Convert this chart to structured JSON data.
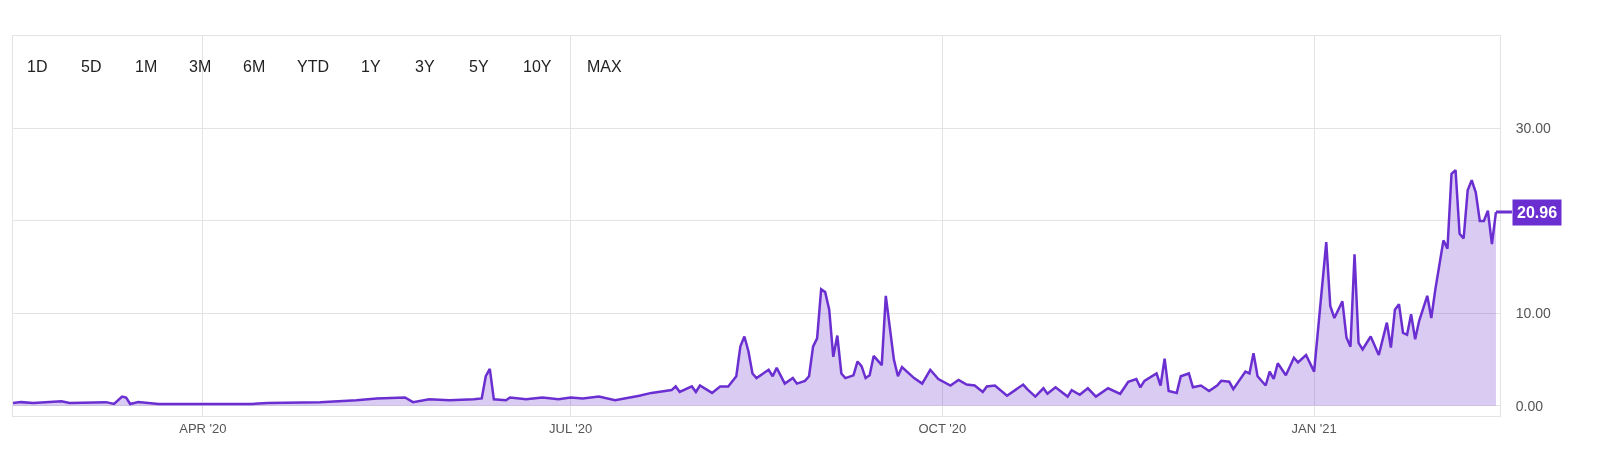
{
  "chart_data": {
    "type": "area",
    "annotations": [
      "1D",
      "5D",
      "1M",
      "3M",
      "6M",
      "YTD",
      "1Y",
      "3Y",
      "5Y",
      "10Y",
      "MAX",
      {
        "text": "20.96",
        "x": "2021-02-15",
        "y": 20.96
      }
    ],
    "x": [
      "2020-02-14",
      "2020-02-16",
      "2020-02-19",
      "2020-02-26",
      "2020-02-28",
      "2020-03-08",
      "2020-03-10",
      "2020-03-12",
      "2020-03-13",
      "2020-03-14",
      "2020-03-16",
      "2020-03-21",
      "2020-04-01",
      "2020-04-13",
      "2020-04-17",
      "2020-04-30",
      "2020-05-09",
      "2020-05-14",
      "2020-05-21",
      "2020-05-23",
      "2020-05-27",
      "2020-06-01",
      "2020-06-07",
      "2020-06-09",
      "2020-06-10",
      "2020-06-11",
      "2020-06-12",
      "2020-06-15",
      "2020-06-16",
      "2020-06-20",
      "2020-06-24",
      "2020-06-28",
      "2020-07-01",
      "2020-07-04",
      "2020-07-08",
      "2020-07-12",
      "2020-07-18",
      "2020-07-21",
      "2020-07-26",
      "2020-07-27",
      "2020-07-28",
      "2020-07-31",
      "2020-08-01",
      "2020-08-02",
      "2020-08-05",
      "2020-08-07",
      "2020-08-09",
      "2020-08-11",
      "2020-08-12",
      "2020-08-13",
      "2020-08-14",
      "2020-08-15",
      "2020-08-16",
      "2020-08-19",
      "2020-08-20",
      "2020-08-21",
      "2020-08-23",
      "2020-08-25",
      "2020-08-26",
      "2020-08-28",
      "2020-08-29",
      "2020-08-30",
      "2020-08-31",
      "2020-09-01",
      "2020-09-02",
      "2020-09-03",
      "2020-09-04",
      "2020-09-05",
      "2020-09-06",
      "2020-09-07",
      "2020-09-09",
      "2020-09-10",
      "2020-09-11",
      "2020-09-12",
      "2020-09-13",
      "2020-09-14",
      "2020-09-16",
      "2020-09-17",
      "2020-09-19",
      "2020-09-20",
      "2020-09-21",
      "2020-09-24",
      "2020-09-26",
      "2020-09-28",
      "2020-09-30",
      "2020-10-03",
      "2020-10-05",
      "2020-10-07",
      "2020-10-09",
      "2020-10-11",
      "2020-10-12",
      "2020-10-14",
      "2020-10-17",
      "2020-10-21",
      "2020-10-22",
      "2020-10-24",
      "2020-10-26",
      "2020-10-27",
      "2020-10-29",
      "2020-11-01",
      "2020-11-02",
      "2020-11-04",
      "2020-11-06",
      "2020-11-08",
      "2020-11-11",
      "2020-11-14",
      "2020-11-16",
      "2020-11-18",
      "2020-11-19",
      "2020-11-20",
      "2020-11-23",
      "2020-11-24",
      "2020-11-25",
      "2020-11-26",
      "2020-11-28",
      "2020-11-29",
      "2020-12-01",
      "2020-12-02",
      "2020-12-04",
      "2020-12-06",
      "2020-12-08",
      "2020-12-09",
      "2020-12-11",
      "2020-12-12",
      "2020-12-15",
      "2020-12-16",
      "2020-12-17",
      "2020-12-18",
      "2020-12-20",
      "2020-12-21",
      "2020-12-22",
      "2020-12-23",
      "2020-12-25",
      "2020-12-27",
      "2020-12-28",
      "2020-12-30",
      "2021-01-01",
      "2021-01-04",
      "2021-01-05",
      "2021-01-06",
      "2021-01-08",
      "2021-01-09",
      "2021-01-10",
      "2021-01-11",
      "2021-01-12",
      "2021-01-13",
      "2021-01-15",
      "2021-01-17",
      "2021-01-19",
      "2021-01-20",
      "2021-01-21",
      "2021-01-22",
      "2021-01-23",
      "2021-01-24",
      "2021-01-25",
      "2021-01-26",
      "2021-01-27",
      "2021-01-29",
      "2021-01-30",
      "2021-01-31",
      "2021-02-02",
      "2021-02-03",
      "2021-02-04",
      "2021-02-05",
      "2021-02-06",
      "2021-02-07",
      "2021-02-08",
      "2021-02-09",
      "2021-02-10",
      "2021-02-11",
      "2021-02-12",
      "2021-02-13",
      "2021-02-14",
      "2021-02-15"
    ],
    "series": [
      {
        "color": "#6b2fd1",
        "values": [
          0.3,
          0.4,
          0.3,
          0.5,
          0.3,
          0.4,
          0.2,
          1.0,
          0.9,
          0.2,
          0.4,
          0.2,
          0.2,
          0.2,
          0.3,
          0.4,
          0.6,
          0.8,
          0.9,
          0.4,
          0.7,
          0.6,
          0.7,
          0.8,
          3.2,
          4.0,
          0.7,
          0.6,
          0.9,
          0.7,
          0.9,
          0.7,
          0.9,
          0.8,
          1.0,
          0.6,
          1.1,
          1.4,
          1.7,
          2.1,
          1.5,
          2.1,
          1.5,
          2.2,
          1.4,
          2.1,
          2.1,
          3.2,
          6.4,
          7.5,
          5.9,
          3.5,
          3.0,
          3.9,
          3.2,
          4.1,
          2.4,
          3.0,
          2.4,
          2.7,
          3.2,
          6.4,
          7.3,
          12.6,
          12.3,
          10.4,
          5.3,
          7.6,
          3.5,
          3.0,
          3.3,
          4.8,
          4.3,
          3.0,
          3.3,
          5.4,
          4.4,
          11.9,
          5.0,
          3.2,
          4.2,
          3.0,
          2.4,
          3.9,
          2.9,
          2.2,
          2.8,
          2.3,
          2.2,
          1.5,
          2.1,
          2.2,
          1.1,
          2.3,
          1.8,
          1.0,
          1.9,
          1.3,
          2.0,
          1.0,
          1.7,
          1.2,
          1.9,
          1.0,
          1.9,
          1.3,
          2.6,
          2.9,
          2.0,
          2.7,
          3.5,
          2.2,
          5.1,
          1.6,
          1.4,
          3.2,
          3.5,
          2.0,
          2.2,
          1.6,
          2.2,
          2.7,
          2.6,
          1.8,
          3.7,
          3.5,
          5.7,
          3.2,
          2.2,
          3.7,
          2.9,
          4.6,
          3.3,
          5.2,
          4.7,
          5.5,
          3.7,
          17.7,
          10.8,
          9.5,
          11.3,
          7.4,
          6.4,
          16.4,
          6.8,
          6.1,
          7.5,
          5.5,
          9.0,
          6.3,
          10.4,
          11.0,
          7.9,
          7.7,
          9.9,
          7.2,
          9.2,
          11.9,
          9.5,
          12.6,
          17.9,
          17.0,
          25.1,
          25.5,
          18.6,
          18.1,
          23.3,
          24.4,
          23.1,
          20.0,
          20.0,
          21.1,
          17.5,
          20.96
        ]
      }
    ],
    "xlim": [
      "2020-02-14",
      "2021-02-16"
    ],
    "xticks": [
      {
        "value": "2020-04-01",
        "label": "APR '20"
      },
      {
        "value": "2020-07-01",
        "label": "JUL '20"
      },
      {
        "value": "2020-10-01",
        "label": "OCT '20"
      },
      {
        "value": "2021-01-01",
        "label": "JAN '21"
      }
    ],
    "ylim": [
      -1.1,
      40
    ],
    "yticks": [
      {
        "value": 0,
        "label": "0.00"
      },
      {
        "value": 10,
        "label": "10.00"
      },
      {
        "value": 20,
        "label": null
      },
      {
        "value": 30,
        "label": "30.00"
      }
    ],
    "grid": true,
    "marker": "none",
    "line_style": "solid"
  }
}
